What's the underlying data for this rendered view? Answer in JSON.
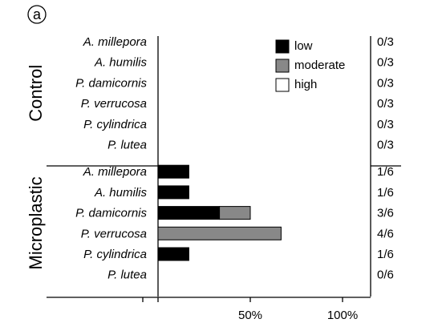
{
  "panel_label": "a",
  "chart_data": {
    "type": "bar",
    "orientation": "horizontal",
    "stacked": true,
    "x_ticks": [
      "50%",
      "100%"
    ],
    "xlim": [
      0,
      100
    ],
    "legend": {
      "placement": "top-right"
    },
    "series": [
      {
        "name": "low",
        "color": "#000000"
      },
      {
        "name": "moderate",
        "color": "#888888"
      },
      {
        "name": "high",
        "color": "#ffffff"
      }
    ],
    "groups": [
      {
        "name": "Control",
        "rows": [
          {
            "species": "A. millepora",
            "values": [
              0,
              0,
              0
            ],
            "ratio": "0/3"
          },
          {
            "species": "A. humilis",
            "values": [
              0,
              0,
              0
            ],
            "ratio": "0/3"
          },
          {
            "species": "P. damicornis",
            "values": [
              0,
              0,
              0
            ],
            "ratio": "0/3"
          },
          {
            "species": "P. verrucosa",
            "values": [
              0,
              0,
              0
            ],
            "ratio": "0/3"
          },
          {
            "species": "P. cylindrica",
            "values": [
              0,
              0,
              0
            ],
            "ratio": "0/3"
          },
          {
            "species": "P. lutea",
            "values": [
              0,
              0,
              0
            ],
            "ratio": "0/3"
          }
        ]
      },
      {
        "name": "Microplastic",
        "rows": [
          {
            "species": "A. millepora",
            "values": [
              16.7,
              0,
              0
            ],
            "ratio": "1/6"
          },
          {
            "species": "A. humilis",
            "values": [
              16.7,
              0,
              0
            ],
            "ratio": "1/6"
          },
          {
            "species": "P. damicornis",
            "values": [
              33.3,
              16.7,
              0
            ],
            "ratio": "3/6"
          },
          {
            "species": "P. verrucosa",
            "values": [
              0,
              66.7,
              0
            ],
            "ratio": "4/6"
          },
          {
            "species": "P. cylindrica",
            "values": [
              16.7,
              0,
              0
            ],
            "ratio": "1/6"
          },
          {
            "species": "P. lutea",
            "values": [
              0,
              0,
              0
            ],
            "ratio": "0/6"
          }
        ]
      }
    ]
  }
}
